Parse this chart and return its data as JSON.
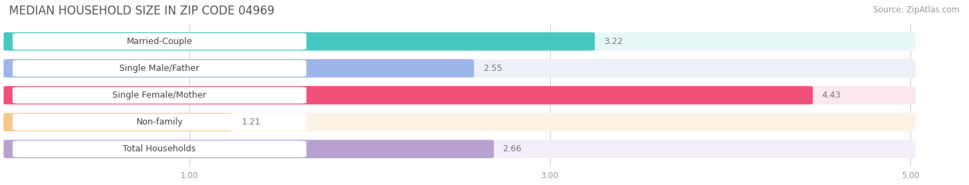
{
  "title": "MEDIAN HOUSEHOLD SIZE IN ZIP CODE 04969",
  "source": "Source: ZipAtlas.com",
  "categories": [
    "Married-Couple",
    "Single Male/Father",
    "Single Female/Mother",
    "Non-family",
    "Total Households"
  ],
  "values": [
    3.22,
    2.55,
    4.43,
    1.21,
    2.66
  ],
  "bar_colors": [
    "#45C8C0",
    "#9DB5E8",
    "#F0507A",
    "#F5C888",
    "#B8A0D0"
  ],
  "bar_bg_colors": [
    "#E8F8F8",
    "#EEF0F8",
    "#FCE8EE",
    "#FDF3E5",
    "#F3EEF8"
  ],
  "label_bg_color": "#FFFFFF",
  "xlim": [
    0,
    5.3
  ],
  "xmin": 0,
  "xmax": 5.0,
  "xticks": [
    1.0,
    3.0,
    5.0
  ],
  "value_label_color": "#777777",
  "title_fontsize": 12,
  "source_fontsize": 8.5,
  "bar_label_fontsize": 9,
  "value_fontsize": 9,
  "background_color": "#FFFFFF",
  "bar_height": 0.62,
  "bar_gap": 0.38
}
